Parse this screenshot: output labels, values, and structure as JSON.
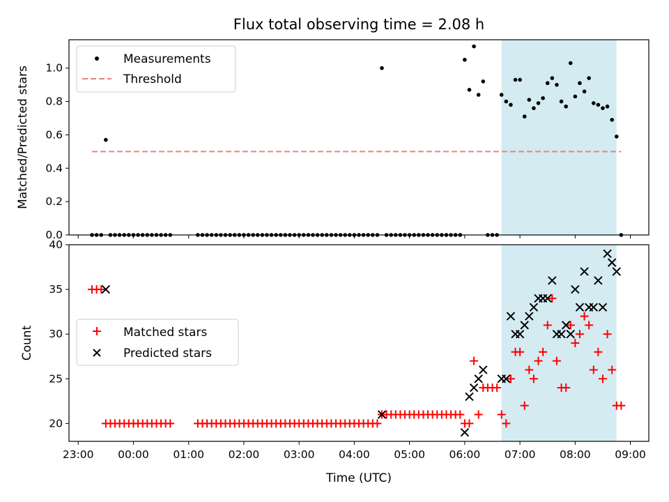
{
  "chart_data": [
    {
      "type": "scatter",
      "title": "Flux total observing time = 2.08 h",
      "ylabel": "Matched/Predicted stars",
      "ylim": [
        0,
        1.17
      ],
      "yticks": [
        "0.0",
        "0.2",
        "0.4",
        "0.6",
        "0.8",
        "1.0"
      ],
      "shaded_interval": [
        "06:40",
        "08:45"
      ],
      "shade_color": "#d4ebf2",
      "legend_position": "top-left",
      "series": [
        {
          "name": "Measurements",
          "color": "#000000",
          "marker": "dot",
          "points": [
            [
              "23:15",
              0
            ],
            [
              "23:20",
              0
            ],
            [
              "23:25",
              0
            ],
            [
              "23:30",
              0.57
            ],
            [
              "23:35",
              0
            ],
            [
              "23:40",
              0
            ],
            [
              "23:45",
              0
            ],
            [
              "23:50",
              0
            ],
            [
              "23:55",
              0
            ],
            [
              "00:00",
              0
            ],
            [
              "00:05",
              0
            ],
            [
              "00:10",
              0
            ],
            [
              "00:15",
              0
            ],
            [
              "00:20",
              0
            ],
            [
              "00:25",
              0
            ],
            [
              "00:30",
              0
            ],
            [
              "00:35",
              0
            ],
            [
              "00:40",
              0
            ],
            [
              "01:10",
              0
            ],
            [
              "01:15",
              0
            ],
            [
              "01:20",
              0
            ],
            [
              "01:25",
              0
            ],
            [
              "01:30",
              0
            ],
            [
              "01:35",
              0
            ],
            [
              "01:40",
              0
            ],
            [
              "01:45",
              0
            ],
            [
              "01:50",
              0
            ],
            [
              "01:55",
              0
            ],
            [
              "02:00",
              0
            ],
            [
              "02:05",
              0
            ],
            [
              "02:10",
              0
            ],
            [
              "02:15",
              0
            ],
            [
              "02:20",
              0
            ],
            [
              "02:25",
              0
            ],
            [
              "02:30",
              0
            ],
            [
              "02:35",
              0
            ],
            [
              "02:40",
              0
            ],
            [
              "02:45",
              0
            ],
            [
              "02:50",
              0
            ],
            [
              "02:55",
              0
            ],
            [
              "03:00",
              0
            ],
            [
              "03:05",
              0
            ],
            [
              "03:10",
              0
            ],
            [
              "03:15",
              0
            ],
            [
              "03:20",
              0
            ],
            [
              "03:25",
              0
            ],
            [
              "03:30",
              0
            ],
            [
              "03:35",
              0
            ],
            [
              "03:40",
              0
            ],
            [
              "03:45",
              0
            ],
            [
              "03:50",
              0
            ],
            [
              "03:55",
              0
            ],
            [
              "04:00",
              0
            ],
            [
              "04:05",
              0
            ],
            [
              "04:10",
              0
            ],
            [
              "04:15",
              0
            ],
            [
              "04:20",
              0
            ],
            [
              "04:25",
              0
            ],
            [
              "04:30",
              1.0
            ],
            [
              "04:35",
              0
            ],
            [
              "04:40",
              0
            ],
            [
              "04:45",
              0
            ],
            [
              "04:50",
              0
            ],
            [
              "04:55",
              0
            ],
            [
              "05:00",
              0
            ],
            [
              "05:05",
              0
            ],
            [
              "05:10",
              0
            ],
            [
              "05:15",
              0
            ],
            [
              "05:20",
              0
            ],
            [
              "05:25",
              0
            ],
            [
              "05:30",
              0
            ],
            [
              "05:35",
              0
            ],
            [
              "05:40",
              0
            ],
            [
              "05:45",
              0
            ],
            [
              "05:50",
              0
            ],
            [
              "05:55",
              0
            ],
            [
              "06:00",
              1.05
            ],
            [
              "06:05",
              0.87
            ],
            [
              "06:10",
              1.13
            ],
            [
              "06:15",
              0.84
            ],
            [
              "06:20",
              0.92
            ],
            [
              "06:25",
              0
            ],
            [
              "06:30",
              0
            ],
            [
              "06:35",
              0
            ],
            [
              "06:40",
              0.84
            ],
            [
              "06:45",
              0.8
            ],
            [
              "06:50",
              0.78
            ],
            [
              "06:55",
              0.93
            ],
            [
              "07:00",
              0.93
            ],
            [
              "07:05",
              0.71
            ],
            [
              "07:10",
              0.81
            ],
            [
              "07:15",
              0.76
            ],
            [
              "07:20",
              0.79
            ],
            [
              "07:25",
              0.82
            ],
            [
              "07:30",
              0.91
            ],
            [
              "07:35",
              0.94
            ],
            [
              "07:40",
              0.9
            ],
            [
              "07:45",
              0.8
            ],
            [
              "07:50",
              0.77
            ],
            [
              "07:55",
              1.03
            ],
            [
              "08:00",
              0.83
            ],
            [
              "08:05",
              0.91
            ],
            [
              "08:10",
              0.86
            ],
            [
              "08:15",
              0.94
            ],
            [
              "08:20",
              0.79
            ],
            [
              "08:25",
              0.78
            ],
            [
              "08:30",
              0.76
            ],
            [
              "08:35",
              0.77
            ],
            [
              "08:40",
              0.69
            ],
            [
              "08:45",
              0.59
            ],
            [
              "08:50",
              0
            ]
          ]
        },
        {
          "name": "Threshold",
          "color": "#f08080",
          "style": "dashed-line",
          "x": [
            "23:15",
            "08:50"
          ],
          "y": [
            0.5,
            0.5
          ]
        }
      ]
    },
    {
      "type": "scatter",
      "title": "",
      "xlabel": "Time (UTC)",
      "ylabel": "Count",
      "xlim": [
        "22:50",
        "09:20"
      ],
      "xticks": [
        "23:00",
        "00:00",
        "01:00",
        "02:00",
        "03:00",
        "04:00",
        "05:00",
        "06:00",
        "07:00",
        "08:00",
        "09:00"
      ],
      "ylim": [
        18,
        40
      ],
      "yticks": [
        "20",
        "25",
        "30",
        "35",
        "40"
      ],
      "shaded_interval": [
        "06:40",
        "08:45"
      ],
      "shade_color": "#d4ebf2",
      "legend_position": "center-left",
      "series": [
        {
          "name": "Matched stars",
          "color": "#ff0000",
          "marker": "plus",
          "points": [
            [
              "23:15",
              35
            ],
            [
              "23:20",
              35
            ],
            [
              "23:25",
              35
            ],
            [
              "23:30",
              20
            ],
            [
              "23:35",
              20
            ],
            [
              "23:40",
              20
            ],
            [
              "23:45",
              20
            ],
            [
              "23:50",
              20
            ],
            [
              "23:55",
              20
            ],
            [
              "00:00",
              20
            ],
            [
              "00:05",
              20
            ],
            [
              "00:10",
              20
            ],
            [
              "00:15",
              20
            ],
            [
              "00:20",
              20
            ],
            [
              "00:25",
              20
            ],
            [
              "00:30",
              20
            ],
            [
              "00:35",
              20
            ],
            [
              "00:40",
              20
            ],
            [
              "01:10",
              20
            ],
            [
              "01:15",
              20
            ],
            [
              "01:20",
              20
            ],
            [
              "01:25",
              20
            ],
            [
              "01:30",
              20
            ],
            [
              "01:35",
              20
            ],
            [
              "01:40",
              20
            ],
            [
              "01:45",
              20
            ],
            [
              "01:50",
              20
            ],
            [
              "01:55",
              20
            ],
            [
              "02:00",
              20
            ],
            [
              "02:05",
              20
            ],
            [
              "02:10",
              20
            ],
            [
              "02:15",
              20
            ],
            [
              "02:20",
              20
            ],
            [
              "02:25",
              20
            ],
            [
              "02:30",
              20
            ],
            [
              "02:35",
              20
            ],
            [
              "02:40",
              20
            ],
            [
              "02:45",
              20
            ],
            [
              "02:50",
              20
            ],
            [
              "02:55",
              20
            ],
            [
              "03:00",
              20
            ],
            [
              "03:05",
              20
            ],
            [
              "03:10",
              20
            ],
            [
              "03:15",
              20
            ],
            [
              "03:20",
              20
            ],
            [
              "03:25",
              20
            ],
            [
              "03:30",
              20
            ],
            [
              "03:35",
              20
            ],
            [
              "03:40",
              20
            ],
            [
              "03:45",
              20
            ],
            [
              "03:50",
              20
            ],
            [
              "03:55",
              20
            ],
            [
              "04:00",
              20
            ],
            [
              "04:05",
              20
            ],
            [
              "04:10",
              20
            ],
            [
              "04:15",
              20
            ],
            [
              "04:20",
              20
            ],
            [
              "04:25",
              20
            ],
            [
              "04:30",
              21
            ],
            [
              "04:35",
              21
            ],
            [
              "04:40",
              21
            ],
            [
              "04:45",
              21
            ],
            [
              "04:50",
              21
            ],
            [
              "04:55",
              21
            ],
            [
              "05:00",
              21
            ],
            [
              "05:05",
              21
            ],
            [
              "05:10",
              21
            ],
            [
              "05:15",
              21
            ],
            [
              "05:20",
              21
            ],
            [
              "05:25",
              21
            ],
            [
              "05:30",
              21
            ],
            [
              "05:35",
              21
            ],
            [
              "05:40",
              21
            ],
            [
              "05:45",
              21
            ],
            [
              "05:50",
              21
            ],
            [
              "05:55",
              21
            ],
            [
              "06:00",
              20
            ],
            [
              "06:05",
              20
            ],
            [
              "06:10",
              27
            ],
            [
              "06:15",
              21
            ],
            [
              "06:20",
              24
            ],
            [
              "06:25",
              24
            ],
            [
              "06:30",
              24
            ],
            [
              "06:35",
              24
            ],
            [
              "06:40",
              21
            ],
            [
              "06:45",
              20
            ],
            [
              "06:50",
              25
            ],
            [
              "06:55",
              28
            ],
            [
              "07:00",
              28
            ],
            [
              "07:05",
              22
            ],
            [
              "07:10",
              26
            ],
            [
              "07:15",
              25
            ],
            [
              "07:20",
              27
            ],
            [
              "07:25",
              28
            ],
            [
              "07:30",
              31
            ],
            [
              "07:35",
              34
            ],
            [
              "07:40",
              27
            ],
            [
              "07:45",
              24
            ],
            [
              "07:50",
              24
            ],
            [
              "07:55",
              31
            ],
            [
              "08:00",
              29
            ],
            [
              "08:05",
              30
            ],
            [
              "08:10",
              32
            ],
            [
              "08:15",
              31
            ],
            [
              "08:20",
              26
            ],
            [
              "08:25",
              28
            ],
            [
              "08:30",
              25
            ],
            [
              "08:35",
              30
            ],
            [
              "08:40",
              26
            ],
            [
              "08:45",
              22
            ],
            [
              "08:50",
              22
            ]
          ]
        },
        {
          "name": "Predicted stars",
          "color": "#000000",
          "marker": "x",
          "points": [
            [
              "23:30",
              35
            ],
            [
              "04:30",
              21
            ],
            [
              "06:00",
              19
            ],
            [
              "06:05",
              23
            ],
            [
              "06:10",
              24
            ],
            [
              "06:15",
              25
            ],
            [
              "06:20",
              26
            ],
            [
              "06:40",
              25
            ],
            [
              "06:45",
              25
            ],
            [
              "06:50",
              32
            ],
            [
              "06:55",
              30
            ],
            [
              "07:00",
              30
            ],
            [
              "07:05",
              31
            ],
            [
              "07:10",
              32
            ],
            [
              "07:15",
              33
            ],
            [
              "07:20",
              34
            ],
            [
              "07:25",
              34
            ],
            [
              "07:30",
              34
            ],
            [
              "07:35",
              36
            ],
            [
              "07:40",
              30
            ],
            [
              "07:45",
              30
            ],
            [
              "07:50",
              31
            ],
            [
              "07:55",
              30
            ],
            [
              "08:00",
              35
            ],
            [
              "08:05",
              33
            ],
            [
              "08:10",
              37
            ],
            [
              "08:15",
              33
            ],
            [
              "08:20",
              33
            ],
            [
              "08:25",
              36
            ],
            [
              "08:30",
              33
            ],
            [
              "08:35",
              39
            ],
            [
              "08:40",
              38
            ],
            [
              "08:45",
              37
            ]
          ]
        }
      ]
    }
  ]
}
